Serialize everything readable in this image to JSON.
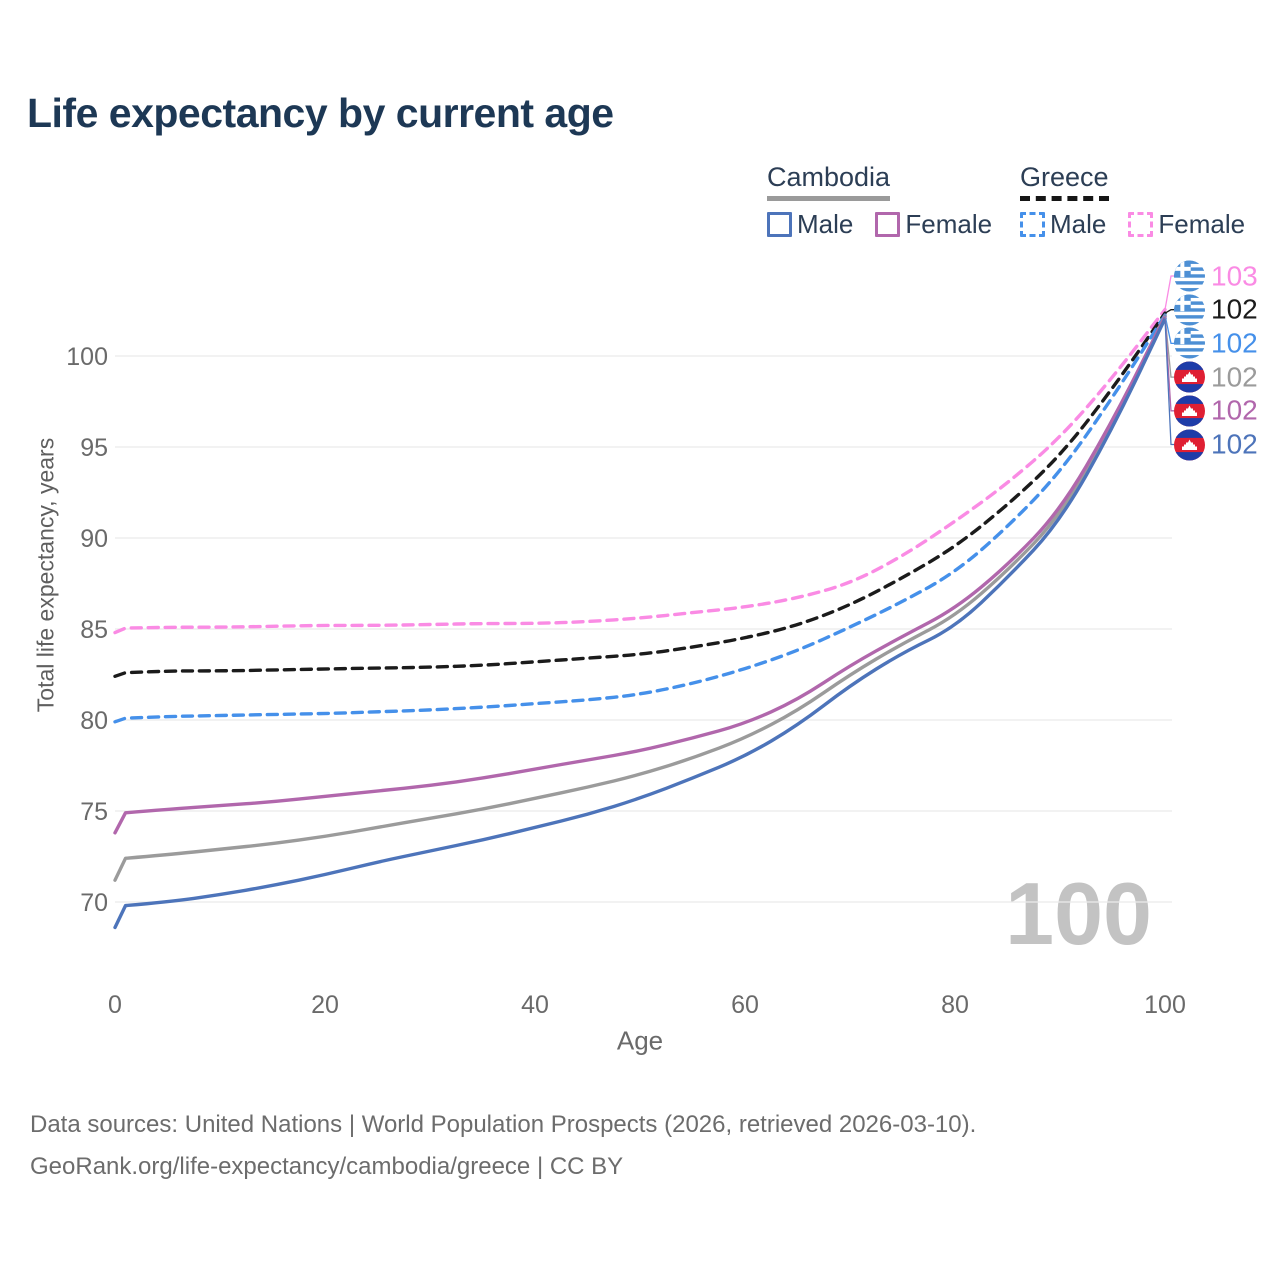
{
  "title": "Life expectancy by current age",
  "legend": {
    "groups": [
      {
        "name": "Cambodia",
        "line_style": "solid",
        "underline_color": "#9a9a9a",
        "items": [
          {
            "label": "Male",
            "color": "#4d74ba"
          },
          {
            "label": "Female",
            "color": "#b167ac"
          }
        ]
      },
      {
        "name": "Greece",
        "line_style": "dashed",
        "underline_color": "#161616",
        "items": [
          {
            "label": "Male",
            "color": "#4590ea"
          },
          {
            "label": "Female",
            "color": "#fa8be4"
          }
        ]
      }
    ]
  },
  "chart_data": {
    "type": "line",
    "title": "Life expectancy by current age",
    "xlabel": "Age",
    "ylabel": "Total life expectancy, years",
    "xlim": [
      0,
      100
    ],
    "ylim": [
      66.5,
      103.5
    ],
    "x_ticks": [
      0,
      20,
      40,
      60,
      80,
      100
    ],
    "y_ticks": [
      70,
      75,
      80,
      85,
      90,
      95,
      100
    ],
    "grid": "horizontal",
    "legend_position": "top-right",
    "watermark": "100",
    "ages": [
      0,
      1,
      5,
      10,
      15,
      20,
      25,
      30,
      35,
      40,
      45,
      50,
      55,
      60,
      65,
      70,
      75,
      80,
      85,
      90,
      95,
      100
    ],
    "series": [
      {
        "key": "greece-female",
        "country": "Greece",
        "sex": "Female",
        "color": "#fa8be4",
        "dash": true,
        "flag": "greece",
        "end_label": "103",
        "values": [
          84.8,
          85.05,
          85.1,
          85.1,
          85.15,
          85.2,
          85.2,
          85.25,
          85.3,
          85.3,
          85.4,
          85.6,
          85.9,
          86.2,
          86.7,
          87.5,
          89.0,
          90.9,
          93.0,
          95.5,
          98.8,
          102.55
        ]
      },
      {
        "key": "greece-total",
        "country": "Greece",
        "sex": "Both sexes",
        "color": "#1b1b1b",
        "dash": true,
        "flag": "greece",
        "end_label": "102",
        "values": [
          82.4,
          82.6,
          82.7,
          82.7,
          82.75,
          82.8,
          82.85,
          82.9,
          83.0,
          83.2,
          83.4,
          83.6,
          84.0,
          84.5,
          85.2,
          86.3,
          87.8,
          89.5,
          91.8,
          94.5,
          98.2,
          102.35
        ]
      },
      {
        "key": "greece-male",
        "country": "Greece",
        "sex": "Male",
        "color": "#4590ea",
        "dash": true,
        "flag": "greece",
        "end_label": "102",
        "values": [
          79.9,
          80.1,
          80.2,
          80.25,
          80.3,
          80.35,
          80.45,
          80.55,
          80.7,
          80.9,
          81.1,
          81.4,
          82.0,
          82.8,
          83.8,
          85.1,
          86.5,
          88.1,
          90.6,
          93.6,
          97.7,
          102.25
        ]
      },
      {
        "key": "cambodia-total",
        "country": "Cambodia",
        "sex": "Both sexes",
        "color": "#9b9b9b",
        "dash": false,
        "flag": "cambodia",
        "end_label": "102",
        "values": [
          71.2,
          72.4,
          72.6,
          72.9,
          73.2,
          73.6,
          74.1,
          74.6,
          75.1,
          75.7,
          76.3,
          77.0,
          77.9,
          79.0,
          80.5,
          82.5,
          84.2,
          85.7,
          88.2,
          91.2,
          96.3,
          102.2
        ]
      },
      {
        "key": "cambodia-female",
        "country": "Cambodia",
        "sex": "Female",
        "color": "#b167ac",
        "dash": false,
        "flag": "cambodia",
        "end_label": "102",
        "values": [
          73.8,
          74.9,
          75.1,
          75.3,
          75.5,
          75.8,
          76.1,
          76.4,
          76.8,
          77.3,
          77.8,
          78.3,
          79.0,
          79.8,
          81.1,
          83.0,
          84.6,
          86.1,
          88.5,
          91.5,
          96.4,
          102.15
        ]
      },
      {
        "key": "cambodia-male",
        "country": "Cambodia",
        "sex": "Male",
        "color": "#4d74ba",
        "dash": false,
        "flag": "cambodia",
        "end_label": "102",
        "values": [
          68.6,
          69.8,
          70.0,
          70.4,
          70.9,
          71.5,
          72.2,
          72.8,
          73.4,
          74.1,
          74.8,
          75.7,
          76.8,
          78.0,
          79.7,
          81.9,
          83.7,
          85.1,
          87.8,
          90.9,
          96.0,
          102.05
        ]
      }
    ]
  },
  "colors": {
    "title": "#1d3855",
    "legend_text": "#2c3e55",
    "grid": "#ebebeb",
    "tick_text": "#6a6a6a",
    "axis_title": "#5f5f5f",
    "watermark": "#c3c3c3",
    "footer": "#6c6c6c"
  },
  "footer": {
    "line1": "Data sources: United Nations | World Population Prospects (2026, retrieved 2026-03-10).",
    "line2": "GeoRank.org/life-expectancy/cambodia/greece | CC BY"
  }
}
